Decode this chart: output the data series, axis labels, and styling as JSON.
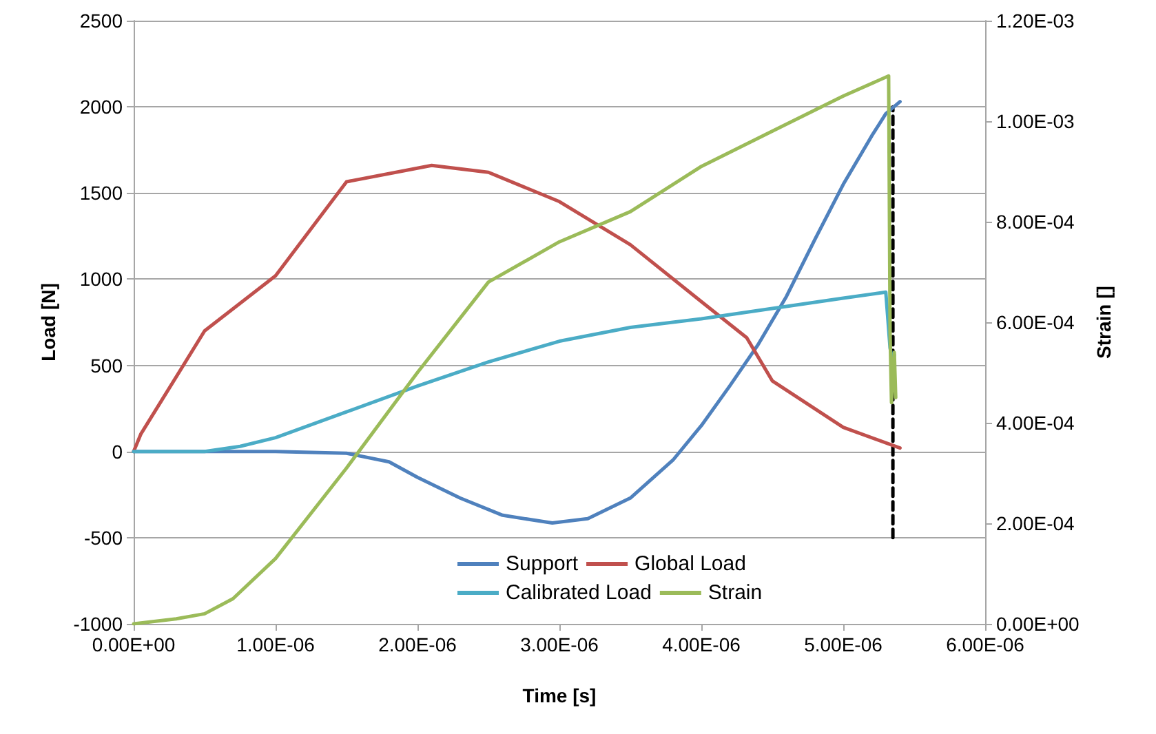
{
  "chart_data": {
    "type": "line",
    "xlabel": "Time [s]",
    "ylabel": "Load [N]",
    "y2label": "Strain []",
    "xlim": [
      0,
      6e-06
    ],
    "xticks": [
      {
        "value": 0,
        "label": "0.00E+00"
      },
      {
        "value": 1e-06,
        "label": "1.00E-06"
      },
      {
        "value": 2e-06,
        "label": "2.00E-06"
      },
      {
        "value": 3e-06,
        "label": "3.00E-06"
      },
      {
        "value": 4e-06,
        "label": "4.00E-06"
      },
      {
        "value": 5e-06,
        "label": "5.00E-06"
      },
      {
        "value": 6e-06,
        "label": "6.00E-06"
      }
    ],
    "ylim": [
      -1000,
      2500
    ],
    "yticks": [
      -1000,
      -500,
      0,
      500,
      1000,
      1500,
      2000,
      2500
    ],
    "y2lim": [
      0,
      0.0012
    ],
    "y2ticks": [
      {
        "value": 0,
        "label": "0.00E+00"
      },
      {
        "value": 0.0002,
        "label": "2.00E-04"
      },
      {
        "value": 0.0004,
        "label": "4.00E-04"
      },
      {
        "value": 0.0006,
        "label": "6.00E-04"
      },
      {
        "value": 0.0008,
        "label": "8.00E-04"
      },
      {
        "value": 0.001,
        "label": "1.00E-03"
      },
      {
        "value": 0.0012,
        "label": "1.20E-03"
      }
    ],
    "grid": "y",
    "legend": "bottom",
    "marker": "none",
    "line_style": "solid",
    "series": [
      {
        "name": "Support",
        "color": "#4f81bd",
        "x": [
          0,
          5e-07,
          1e-06,
          1.5e-06,
          1.8e-06,
          2e-06,
          2.3e-06,
          2.6e-06,
          2.95e-06,
          3.2e-06,
          3.5e-06,
          3.8e-06,
          4e-06,
          4.2e-06,
          4.4e-06,
          4.6e-06,
          4.8e-06,
          5e-06,
          5.2e-06,
          5.3e-06,
          5.4e-06
        ],
        "values": [
          0,
          0,
          0,
          -10,
          -60,
          -150,
          -270,
          -370,
          -415,
          -390,
          -270,
          -50,
          150,
          380,
          620,
          900,
          1230,
          1550,
          1830,
          1960,
          2030
        ]
      },
      {
        "name": "Global Load",
        "color": "#c0504d",
        "x": [
          0,
          5e-08,
          2e-07,
          5e-07,
          1e-06,
          1.5e-06,
          2.1e-06,
          2.5e-06,
          3e-06,
          3.5e-06,
          4e-06,
          4.32e-06,
          4.5e-06,
          5e-06,
          5.4e-06
        ],
        "values": [
          0,
          100,
          300,
          700,
          1020,
          1565,
          1660,
          1620,
          1450,
          1200,
          870,
          660,
          410,
          140,
          20
        ]
      },
      {
        "name": "Calibrated Load",
        "color": "#4bacc6",
        "x": [
          0,
          5e-07,
          7.5e-07,
          1e-06,
          1.5e-06,
          2e-06,
          2.5e-06,
          3e-06,
          3.5e-06,
          4e-06,
          4.5e-06,
          5e-06,
          5.3e-06,
          5.33e-06,
          5.35e-06,
          5.36e-06
        ],
        "values": [
          0,
          0,
          30,
          80,
          230,
          380,
          520,
          640,
          720,
          770,
          830,
          890,
          925,
          600,
          520,
          560
        ]
      },
      {
        "name": "Strain",
        "color": "#9bbb59",
        "axis": "y2",
        "x": [
          0,
          3e-07,
          5e-07,
          7e-07,
          1e-06,
          1.5e-06,
          2e-06,
          2.5e-06,
          3e-06,
          3.5e-06,
          4e-06,
          4.5e-06,
          5e-06,
          5.32e-06,
          5.33e-06,
          5.34e-06,
          5.36e-06,
          5.37e-06
        ],
        "values": [
          0,
          1e-05,
          2e-05,
          5e-05,
          0.00013,
          0.00031,
          0.0005,
          0.00068,
          0.00076,
          0.00082,
          0.00091,
          0.00098,
          0.00105,
          0.00109,
          0.00058,
          0.00044,
          0.00054,
          0.00045
        ]
      },
      {
        "color": "#000000",
        "line_style": "dashed",
        "x": [
          5.35e-06,
          5.35e-06
        ],
        "values": [
          -500,
          2000
        ]
      }
    ]
  }
}
